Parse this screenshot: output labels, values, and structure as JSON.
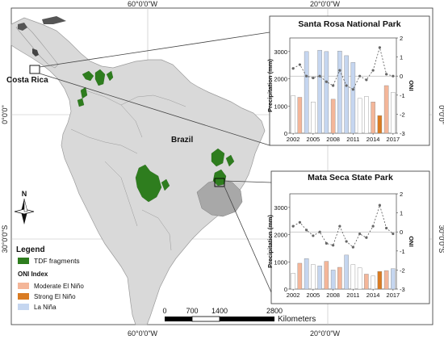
{
  "coordinates": {
    "top": [
      "60°0'0\"W",
      "20°0'0\"W"
    ],
    "bottom": [
      "60°0'0\"W",
      "20°0'0\"W"
    ],
    "left": [
      "0°0'0\"",
      "30°0'0\"S"
    ],
    "right": [
      "0°0'0\"",
      "30°0'0\"S"
    ]
  },
  "map_labels": {
    "costa_rica": "Costa Rica",
    "brazil": "Brazil"
  },
  "north_arrow": {
    "label": "N"
  },
  "legend": {
    "title": "Legend",
    "tdf_label": "TDF fragments",
    "oni_title": "ONI Index",
    "items": [
      {
        "label": "Moderate El Niño",
        "color": "#f4b699"
      },
      {
        "label": "Strong El Niño",
        "color": "#d97b22"
      },
      {
        "label": "La Niña",
        "color": "#c5d6f0"
      }
    ],
    "tdf_color": "#2e7d1e"
  },
  "scale_bar": {
    "ticks": [
      "0",
      "700",
      "1400",
      "2800"
    ],
    "unit": "Kilometers"
  },
  "chart_data": [
    {
      "type": "bar",
      "title": "Santa Rosa National Park",
      "ylabel": "Precipitation (mm)",
      "y2label": "ONI",
      "ylim": [
        0,
        3500
      ],
      "y_ticks": [
        "0",
        "1000",
        "2000",
        "3000"
      ],
      "y2lim": [
        -3,
        2
      ],
      "y2_ticks": [
        "2",
        "1",
        "0",
        "-1",
        "-2",
        "-3"
      ],
      "x_ticks": [
        "2002",
        "2005",
        "2008",
        "2011",
        "2014",
        "2017"
      ],
      "x": [
        2002,
        2003,
        2004,
        2005,
        2006,
        2007,
        2008,
        2009,
        2010,
        2011,
        2012,
        2013,
        2014,
        2015,
        2016,
        2017
      ],
      "values": [
        1380,
        1320,
        3000,
        1150,
        3050,
        3000,
        1250,
        3020,
        2850,
        2600,
        1280,
        1350,
        1150,
        650,
        1750,
        1500
      ],
      "bar_class": [
        "neutral",
        "moderate",
        "lanina",
        "neutral",
        "lanina",
        "lanina",
        "moderate",
        "lanina",
        "lanina",
        "lanina",
        "neutral",
        "neutral",
        "moderate",
        "strong",
        "moderate",
        "neutral"
      ],
      "oni": [
        0.4,
        0.6,
        0.0,
        -0.1,
        0.0,
        -0.3,
        -0.5,
        0.3,
        -0.5,
        -0.7,
        0.0,
        -0.2,
        0.3,
        1.5,
        0.1,
        0.0
      ]
    },
    {
      "type": "bar",
      "title": "Mata Seca State Park",
      "ylabel": "Precipitation (mm)",
      "y2label": "ONI",
      "ylim": [
        0,
        3500
      ],
      "y_ticks": [
        "0",
        "1000",
        "2000",
        "3000"
      ],
      "y2lim": [
        -3,
        2
      ],
      "y2_ticks": [
        "2",
        "1",
        "0",
        "-1",
        "-2",
        "-3"
      ],
      "x_ticks": [
        "2002",
        "2005",
        "2008",
        "2011",
        "2014",
        "2017"
      ],
      "x": [
        2002,
        2003,
        2004,
        2005,
        2006,
        2007,
        2008,
        2009,
        2010,
        2011,
        2012,
        2013,
        2014,
        2015,
        2016,
        2017
      ],
      "values": [
        580,
        950,
        1120,
        900,
        850,
        1020,
        700,
        800,
        1250,
        900,
        780,
        550,
        480,
        650,
        680,
        750
      ],
      "bar_class": [
        "neutral",
        "moderate",
        "lanina",
        "neutral",
        "lanina",
        "moderate",
        "lanina",
        "moderate",
        "lanina",
        "neutral",
        "neutral",
        "moderate",
        "neutral",
        "strong",
        "moderate",
        "lanina"
      ],
      "oni": [
        0.3,
        0.5,
        0.1,
        -0.2,
        0.0,
        -0.6,
        -0.7,
        0.3,
        -0.5,
        -0.8,
        -0.1,
        -0.3,
        0.3,
        1.4,
        0.2,
        -0.1
      ]
    }
  ]
}
